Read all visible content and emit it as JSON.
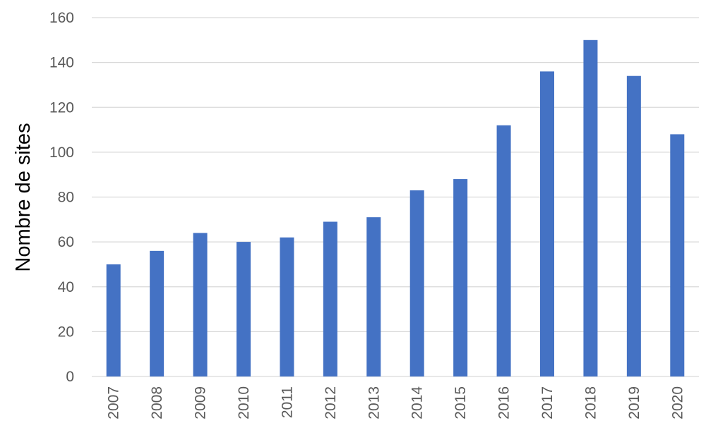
{
  "chart_data": {
    "type": "bar",
    "title": "",
    "xlabel": "",
    "ylabel": "Nombre de sites",
    "categories": [
      "2007",
      "2008",
      "2009",
      "2010",
      "2011",
      "2012",
      "2013",
      "2014",
      "2015",
      "2016",
      "2017",
      "2018",
      "2019",
      "2020"
    ],
    "values": [
      50,
      56,
      64,
      60,
      62,
      69,
      71,
      83,
      88,
      112,
      136,
      150,
      134,
      108
    ],
    "ylim": [
      0,
      160
    ],
    "yticks": [
      "0",
      "20",
      "40",
      "60",
      "80",
      "100",
      "120",
      "140",
      "160"
    ],
    "grid": true,
    "legend": "none",
    "bar_color": "#4472c4"
  }
}
